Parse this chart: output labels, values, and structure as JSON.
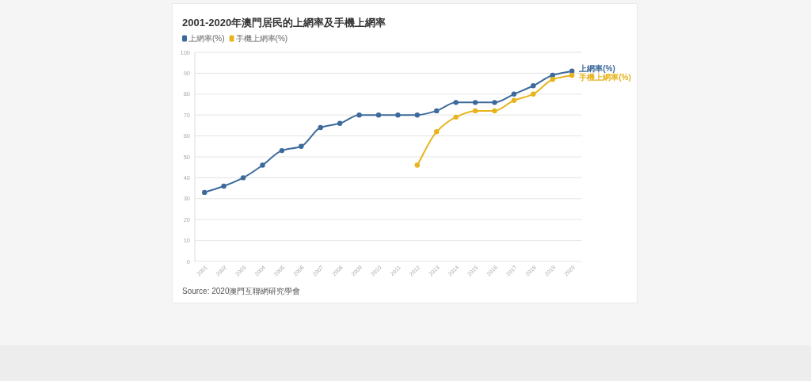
{
  "chart_data": {
    "type": "line",
    "title": "2001-2020年澳門居民的上網率及手機上網率",
    "categories": [
      "2001",
      "2002",
      "2003",
      "2004",
      "2005",
      "2006",
      "2007",
      "2008",
      "2009",
      "2010",
      "2011",
      "2012",
      "2013",
      "2014",
      "2015",
      "2016",
      "2017",
      "2018",
      "2019",
      "2020"
    ],
    "series": [
      {
        "name": "上網率(%)",
        "color": "#3d6a9c",
        "values": [
          33,
          36,
          40,
          46,
          53,
          55,
          64,
          66,
          70,
          70,
          70,
          70,
          72,
          76,
          76,
          76,
          80,
          84,
          89,
          91
        ]
      },
      {
        "name": "手機上網率(%)",
        "color": "#e7b41d",
        "values": [
          null,
          null,
          null,
          null,
          null,
          null,
          null,
          null,
          null,
          null,
          null,
          46,
          62,
          69,
          72,
          72,
          77,
          80,
          87,
          89
        ]
      }
    ],
    "ylim": [
      0,
      100
    ],
    "yticks": [
      0,
      10,
      20,
      30,
      40,
      50,
      60,
      70,
      80,
      90,
      100
    ],
    "grid": "y",
    "legend": "top left",
    "marker": "circle",
    "line_style": "solid",
    "annotations": [
      "Source: 2020澳門互聯網研究學會"
    ]
  }
}
